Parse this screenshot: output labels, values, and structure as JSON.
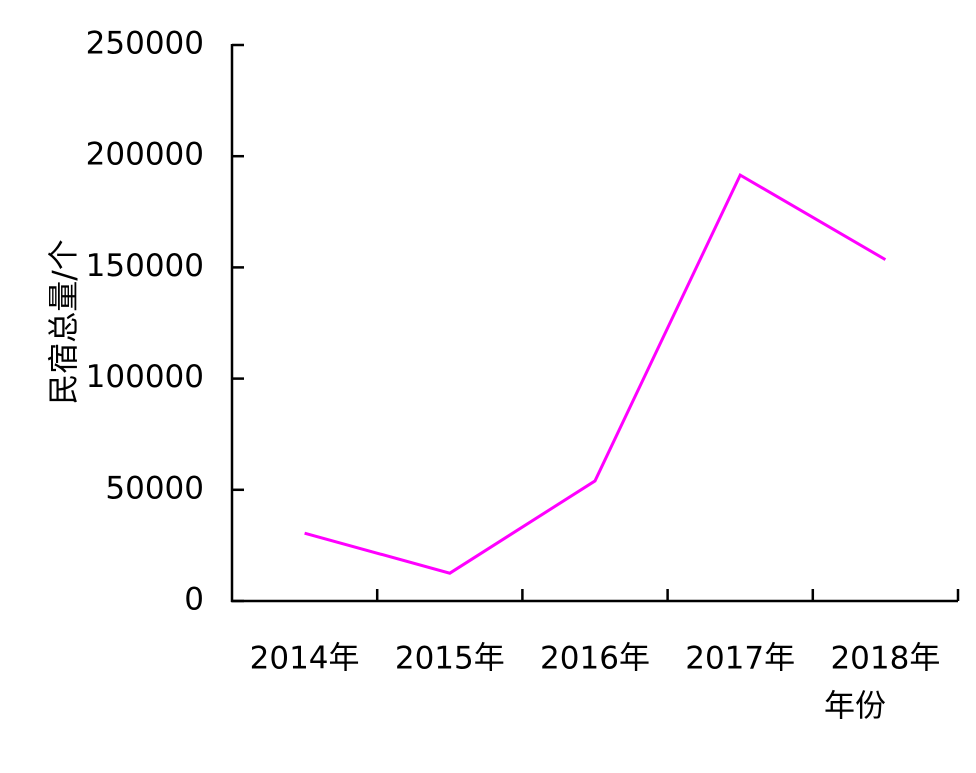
{
  "chart_data": {
    "type": "line",
    "title": null,
    "x_label": "年份",
    "y_label": "民宿总量/个",
    "categories": [
      "2014年",
      "2015年",
      "2016年",
      "2017年",
      "2018年"
    ],
    "series": [
      {
        "name": "民宿总量",
        "color": "#ff00ff",
        "values": [
          30500,
          12500,
          54000,
          191500,
          153500
        ]
      }
    ],
    "ylim": [
      0,
      250000
    ],
    "yticks": [
      0,
      50000,
      100000,
      150000,
      200000,
      250000
    ],
    "grid": false,
    "legend": false
  }
}
